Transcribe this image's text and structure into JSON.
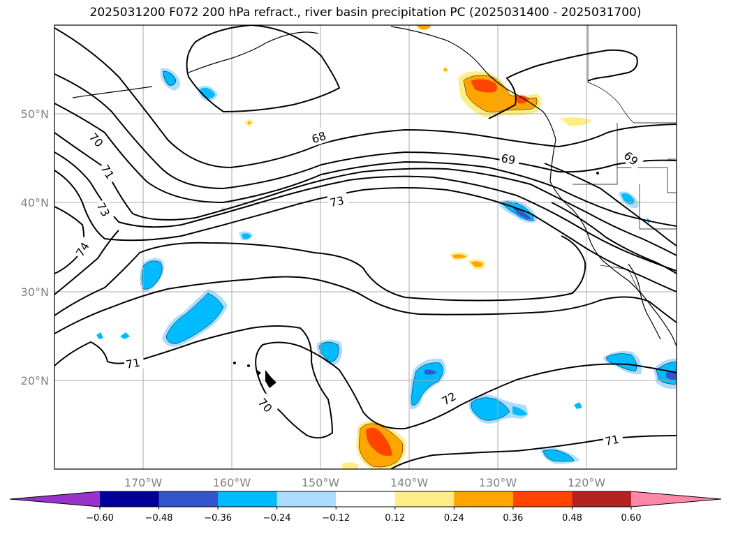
{
  "title": "2025031200 F072 200 hPa refract., river basin precipitation PC (2025031400 - 2025031700)",
  "lon_labels": [
    "170°W",
    "160°W",
    "150°W",
    "140°W",
    "130°W",
    "120°W"
  ],
  "lat_labels": [
    "50°N",
    "40°N",
    "30°N",
    "20°N"
  ],
  "contour_labels": [
    "70",
    "71",
    "73",
    "74",
    "68",
    "73",
    "69",
    "69",
    "71",
    "70",
    "72",
    "71"
  ],
  "colorbar": {
    "ticks": [
      "−0.60",
      "−0.48",
      "−0.36",
      "−0.24",
      "−0.12",
      "0.12",
      "0.24",
      "0.36",
      "0.48",
      "0.60"
    ],
    "colors": [
      "#9933cc",
      "#000099",
      "#3355cc",
      "#00bbff",
      "#aaddff",
      "#ffffff",
      "#ffee88",
      "#ffa500",
      "#ff4400",
      "#b22222",
      "#ff88aa"
    ]
  },
  "fill_colors": {
    "blue_light": "#aaddff",
    "blue": "#00bbff",
    "blue_dark": "#3355cc",
    "yellow": "#ffee88",
    "orange": "#ffa500",
    "red": "#ff4400"
  }
}
